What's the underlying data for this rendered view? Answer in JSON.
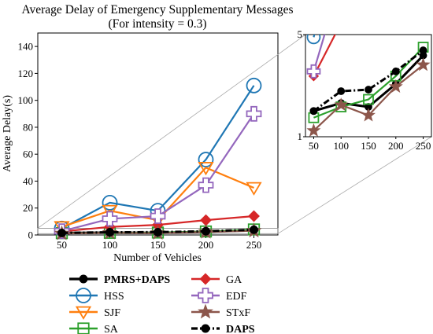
{
  "chart_data": {
    "type": "line",
    "title": "Average Delay of Emergency Supplementary Messages",
    "subtitle": "(For intensity = 0.3)",
    "xlabel": "Number of Vehicles",
    "ylabel": "Average Delay(s)",
    "x": [
      50,
      100,
      150,
      200,
      250
    ],
    "x_ticks": [
      "50",
      "100",
      "150",
      "200",
      "250"
    ],
    "ylim": [
      0,
      150
    ],
    "y_ticks": [
      "0",
      "20",
      "40",
      "60",
      "80",
      "100",
      "120",
      "140"
    ],
    "grid": false,
    "legend_placement": "below",
    "series": [
      {
        "name": "PMRS+DAPS",
        "color": "#000000",
        "marker": "dot",
        "dash": "solid",
        "bold": true,
        "values": [
          1.5,
          1.7,
          1.6,
          2.3,
          3.6
        ]
      },
      {
        "name": "HSS",
        "color": "#1f77b4",
        "marker": "circle",
        "dash": "solid",
        "bold": false,
        "values": [
          4.8,
          24,
          18,
          56,
          111
        ]
      },
      {
        "name": "SJF",
        "color": "#ff7f0e",
        "marker": "triangle-down",
        "dash": "solid",
        "bold": false,
        "values": [
          6.0,
          18,
          11,
          50,
          35
        ]
      },
      {
        "name": "SA",
        "color": "#2ca02c",
        "marker": "square",
        "dash": "solid",
        "bold": false,
        "values": [
          1.35,
          1.6,
          1.8,
          2.6,
          4.1
        ]
      },
      {
        "name": "GA",
        "color": "#d62728",
        "marker": "diamond",
        "dash": "solid",
        "bold": false,
        "values": [
          2.6,
          6,
          7.5,
          11,
          14
        ]
      },
      {
        "name": "EDF",
        "color": "#9467bd",
        "marker": "plus",
        "dash": "solid",
        "bold": false,
        "values": [
          2.8,
          12,
          14,
          37,
          90
        ]
      },
      {
        "name": "STxF",
        "color": "#8c564b",
        "marker": "star",
        "dash": "solid",
        "bold": false,
        "values": [
          1.1,
          1.65,
          1.4,
          2.2,
          3.1
        ]
      },
      {
        "name": "DAPS",
        "color": "#000000",
        "marker": "dot",
        "dash": "dashdot",
        "bold": true,
        "values": [
          1.5,
          2.05,
          2.1,
          2.8,
          3.9
        ]
      }
    ],
    "inset": {
      "scale": "log",
      "ylim": [
        1,
        5
      ],
      "y_ticks": [
        "1",
        "5"
      ],
      "x_ticks": [
        "50",
        "100",
        "150",
        "200",
        "250"
      ]
    }
  }
}
